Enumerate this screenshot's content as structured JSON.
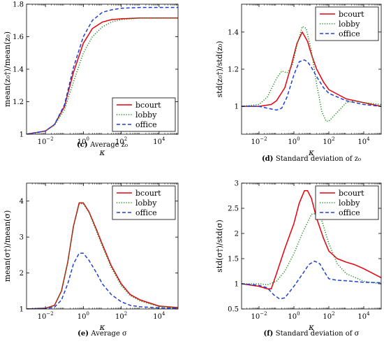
{
  "chart_data": [
    {
      "type": "line",
      "panel": "c",
      "caption_tag": "(c)",
      "caption_text": "Average z₀",
      "xlabel": "κ",
      "ylabel": "mean(z₀†)/mean(z₀)",
      "xscale": "log",
      "xlim": [
        0.001,
        100000
      ],
      "ylim": [
        1,
        1.8
      ],
      "xticks": [
        {
          "value": 0.01,
          "base": "10",
          "exp": "−2"
        },
        {
          "value": 1,
          "base": "10",
          "exp": "0"
        },
        {
          "value": 100,
          "base": "10",
          "exp": "2"
        },
        {
          "value": 10000,
          "base": "10",
          "exp": "4"
        }
      ],
      "yticks": [
        {
          "value": 1,
          "label": "1"
        },
        {
          "value": 1.2,
          "label": "1.2"
        },
        {
          "value": 1.4,
          "label": "1.4"
        },
        {
          "value": 1.6,
          "label": "1.6"
        },
        {
          "value": 1.8,
          "label": "1.8"
        }
      ],
      "legend_position": "bottom-right",
      "series": [
        {
          "name": "bcourt",
          "color": "#e8000b",
          "dash": "solid",
          "x": [
            0.001,
            0.01,
            0.03,
            0.1,
            0.3,
            1,
            3,
            10,
            30,
            100,
            1000,
            100000
          ],
          "y": [
            1.0,
            1.02,
            1.06,
            1.17,
            1.38,
            1.56,
            1.65,
            1.69,
            1.705,
            1.71,
            1.715,
            1.715
          ]
        },
        {
          "name": "lobby",
          "color": "#1a8a1a",
          "dash": "dotted",
          "x": [
            0.001,
            0.01,
            0.03,
            0.1,
            0.3,
            1,
            3,
            10,
            30,
            100,
            1000,
            100000
          ],
          "y": [
            1.0,
            1.02,
            1.055,
            1.15,
            1.32,
            1.5,
            1.6,
            1.66,
            1.69,
            1.705,
            1.715,
            1.715
          ]
        },
        {
          "name": "office",
          "color": "#1f3fd6",
          "dash": "dashed",
          "x": [
            0.001,
            0.01,
            0.03,
            0.1,
            0.3,
            1,
            3,
            10,
            30,
            100,
            1000,
            100000
          ],
          "y": [
            1.0,
            1.02,
            1.06,
            1.18,
            1.41,
            1.6,
            1.7,
            1.75,
            1.765,
            1.775,
            1.78,
            1.78
          ]
        }
      ]
    },
    {
      "type": "line",
      "panel": "d",
      "caption_tag": "(d)",
      "caption_text": "Standard deviation of z₀",
      "xlabel": "κ",
      "ylabel": "std(z₀†)/std(z₀)",
      "xscale": "log",
      "xlim": [
        0.001,
        100000
      ],
      "ylim": [
        0.85,
        1.55
      ],
      "xticks": [
        {
          "value": 0.01,
          "base": "10",
          "exp": "−2"
        },
        {
          "value": 1,
          "base": "10",
          "exp": "0"
        },
        {
          "value": 100,
          "base": "10",
          "exp": "2"
        },
        {
          "value": 10000,
          "base": "10",
          "exp": "4"
        }
      ],
      "yticks": [
        {
          "value": 1,
          "label": "1"
        },
        {
          "value": 1.2,
          "label": "1.2"
        },
        {
          "value": 1.4,
          "label": "1.4"
        }
      ],
      "legend_position": "top-right",
      "series": [
        {
          "name": "bcourt",
          "color": "#e8000b",
          "dash": "solid",
          "x": [
            0.001,
            0.01,
            0.05,
            0.1,
            0.3,
            0.7,
            1.5,
            3,
            6,
            10,
            20,
            50,
            100,
            1000,
            10000,
            100000
          ],
          "y": [
            1.0,
            1.0,
            1.01,
            1.03,
            1.1,
            1.22,
            1.34,
            1.4,
            1.35,
            1.28,
            1.2,
            1.13,
            1.09,
            1.04,
            1.02,
            1.0
          ]
        },
        {
          "name": "lobby",
          "color": "#1a8a1a",
          "dash": "dotted",
          "x": [
            0.001,
            0.01,
            0.03,
            0.1,
            0.2,
            0.4,
            0.8,
            1.5,
            3,
            5,
            10,
            20,
            40,
            70,
            100,
            200,
            1000,
            3000,
            10000,
            100000
          ],
          "y": [
            1.0,
            1.01,
            1.05,
            1.15,
            1.19,
            1.18,
            1.22,
            1.33,
            1.43,
            1.42,
            1.3,
            1.12,
            0.97,
            0.92,
            0.92,
            0.95,
            1.02,
            1.03,
            1.02,
            1.01
          ]
        },
        {
          "name": "office",
          "color": "#1f3fd6",
          "dash": "dashed",
          "x": [
            0.001,
            0.01,
            0.03,
            0.1,
            0.2,
            0.4,
            1,
            2,
            4,
            6,
            10,
            20,
            50,
            100,
            1000,
            10000,
            100000
          ],
          "y": [
            1.0,
            1.0,
            0.99,
            0.98,
            0.99,
            1.05,
            1.17,
            1.24,
            1.25,
            1.24,
            1.21,
            1.16,
            1.1,
            1.07,
            1.03,
            1.01,
            1.0
          ]
        }
      ]
    },
    {
      "type": "line",
      "panel": "e",
      "caption_tag": "(e)",
      "caption_text": "Average σ",
      "xlabel": "κ",
      "ylabel": "mean(σ†)/mean(σ)",
      "xscale": "log",
      "xlim": [
        0.001,
        100000
      ],
      "ylim": [
        1,
        4.5
      ],
      "xticks": [
        {
          "value": 0.01,
          "base": "10",
          "exp": "−2"
        },
        {
          "value": 1,
          "base": "10",
          "exp": "0"
        },
        {
          "value": 100,
          "base": "10",
          "exp": "2"
        },
        {
          "value": 10000,
          "base": "10",
          "exp": "4"
        }
      ],
      "yticks": [
        {
          "value": 1,
          "label": "1"
        },
        {
          "value": 2,
          "label": "2"
        },
        {
          "value": 3,
          "label": "3"
        },
        {
          "value": 4,
          "label": "4"
        }
      ],
      "legend_position": "top-right",
      "series": [
        {
          "name": "bcourt",
          "color": "#e8000b",
          "dash": "solid",
          "x": [
            0.001,
            0.01,
            0.03,
            0.07,
            0.15,
            0.3,
            0.6,
            1,
            2,
            5,
            10,
            30,
            100,
            300,
            1000,
            10000,
            100000
          ],
          "y": [
            1.0,
            1.02,
            1.1,
            1.5,
            2.3,
            3.3,
            3.95,
            3.95,
            3.7,
            3.2,
            2.8,
            2.2,
            1.7,
            1.4,
            1.25,
            1.08,
            1.04
          ]
        },
        {
          "name": "lobby",
          "color": "#1a8a1a",
          "dash": "dotted",
          "x": [
            0.001,
            0.01,
            0.03,
            0.07,
            0.15,
            0.3,
            0.6,
            1,
            2,
            5,
            10,
            30,
            100,
            300,
            1000,
            10000,
            100000
          ],
          "y": [
            1.0,
            1.02,
            1.1,
            1.5,
            2.3,
            3.3,
            3.92,
            3.93,
            3.68,
            3.15,
            2.75,
            2.15,
            1.65,
            1.37,
            1.22,
            1.07,
            1.04
          ]
        },
        {
          "name": "office",
          "color": "#1f3fd6",
          "dash": "dashed",
          "x": [
            0.001,
            0.01,
            0.03,
            0.07,
            0.15,
            0.3,
            0.6,
            1,
            2,
            5,
            10,
            30,
            100,
            300,
            1000,
            10000,
            100000
          ],
          "y": [
            1.0,
            1.01,
            1.05,
            1.25,
            1.7,
            2.25,
            2.55,
            2.55,
            2.35,
            2.0,
            1.7,
            1.4,
            1.2,
            1.1,
            1.06,
            1.03,
            1.02
          ]
        }
      ]
    },
    {
      "type": "line",
      "panel": "f",
      "caption_tag": "(f)",
      "caption_text": "Standard deviation of σ",
      "xlabel": "κ",
      "ylabel": "std(σ†)/std(σ)",
      "xscale": "log",
      "xlim": [
        0.001,
        100000
      ],
      "ylim": [
        0.5,
        3
      ],
      "xticks": [
        {
          "value": 0.01,
          "base": "10",
          "exp": "−2"
        },
        {
          "value": 1,
          "base": "10",
          "exp": "0"
        },
        {
          "value": 100,
          "base": "10",
          "exp": "2"
        },
        {
          "value": 10000,
          "base": "10",
          "exp": "4"
        }
      ],
      "yticks": [
        {
          "value": 0.5,
          "label": "0.5"
        },
        {
          "value": 1,
          "label": "1"
        },
        {
          "value": 1.5,
          "label": "1.5"
        },
        {
          "value": 2,
          "label": "2"
        },
        {
          "value": 2.5,
          "label": "2.5"
        },
        {
          "value": 3,
          "label": "3"
        }
      ],
      "legend_position": "top-right",
      "series": [
        {
          "name": "bcourt",
          "color": "#e8000b",
          "dash": "solid",
          "x": [
            0.001,
            0.01,
            0.03,
            0.05,
            0.1,
            0.3,
            1,
            2,
            4,
            6,
            10,
            20,
            50,
            100,
            300,
            1000,
            3000,
            10000,
            100000
          ],
          "y": [
            1.0,
            0.95,
            0.9,
            0.9,
            1.2,
            1.7,
            2.2,
            2.6,
            2.85,
            2.85,
            2.7,
            2.3,
            1.9,
            1.65,
            1.5,
            1.43,
            1.38,
            1.3,
            1.12
          ]
        },
        {
          "name": "lobby",
          "color": "#1a8a1a",
          "dash": "dotted",
          "x": [
            0.001,
            0.01,
            0.03,
            0.1,
            0.3,
            1,
            3,
            10,
            20,
            40,
            100,
            300,
            1000,
            10000,
            100000
          ],
          "y": [
            1.0,
            1.0,
            0.98,
            1.05,
            1.25,
            1.6,
            2.0,
            2.38,
            2.4,
            2.25,
            1.8,
            1.4,
            1.2,
            1.05,
            1.0
          ]
        },
        {
          "name": "office",
          "color": "#1f3fd6",
          "dash": "dashed",
          "x": [
            0.001,
            0.01,
            0.03,
            0.07,
            0.15,
            0.3,
            1,
            2,
            4,
            7,
            15,
            30,
            60,
            100,
            300,
            1000,
            10000,
            100000
          ],
          "y": [
            1.0,
            0.97,
            0.92,
            0.78,
            0.7,
            0.72,
            0.95,
            1.1,
            1.25,
            1.38,
            1.45,
            1.4,
            1.22,
            1.1,
            1.07,
            1.06,
            1.03,
            1.02
          ]
        }
      ]
    }
  ]
}
